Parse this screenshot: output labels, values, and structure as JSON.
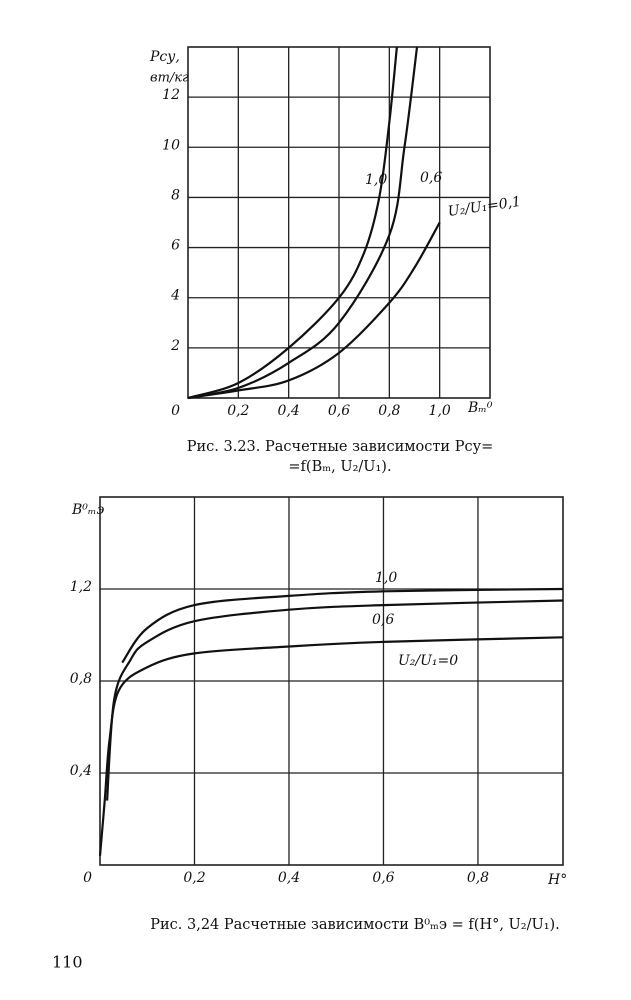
{
  "chart_data": [
    {
      "type": "line",
      "y_label": "Pсу,",
      "y_unit": "вт/кг",
      "x_label": "Bₘ⁰",
      "caption": [
        "Рис. 3.23. Расчетные зависимости Pсу=",
        "=f(Bₘ, U₂/U₁)."
      ],
      "xlim": [
        0,
        1.2
      ],
      "ylim": [
        0,
        14
      ],
      "xticks": [
        0,
        {
          "value": 0.2,
          "label": "0,2"
        },
        {
          "value": 0.4,
          "label": "0,4"
        },
        {
          "value": 0.6,
          "label": "0,6"
        },
        {
          "value": 0.8,
          "label": "0,8"
        },
        {
          "value": 1.0,
          "label": "1,0"
        }
      ],
      "yticks": [
        2,
        4,
        6,
        8,
        10,
        12
      ],
      "grid": true,
      "series": [
        {
          "name": "1,0",
          "color": "#111111",
          "x": [
            0,
            0.2,
            0.4,
            0.6,
            0.7,
            0.76,
            0.8,
            0.83
          ],
          "values": [
            0,
            0.6,
            2.0,
            4.0,
            5.8,
            8,
            11,
            14
          ]
        },
        {
          "name": "0,6",
          "color": "#111111",
          "x": [
            0,
            0.2,
            0.4,
            0.6,
            0.8,
            0.86,
            0.91
          ],
          "values": [
            0,
            0.4,
            1.4,
            3.0,
            6.5,
            10,
            14
          ]
        },
        {
          "name": "U₂/U₁=0,1",
          "color": "#111111",
          "x": [
            0,
            0.2,
            0.4,
            0.6,
            0.8,
            0.9,
            1.0
          ],
          "values": [
            0,
            0.3,
            0.7,
            1.8,
            3.8,
            5.2,
            7.0
          ]
        }
      ]
    },
    {
      "type": "line",
      "y_label": "B⁰ₘэ",
      "x_label": "H°",
      "caption": [
        "Рис. 3,24 Расчетные зависимости B⁰ₘэ = f(H°, U₂/U₁)."
      ],
      "xlim": [
        0,
        0.98
      ],
      "ylim": [
        0,
        1.6
      ],
      "xticks": [
        0,
        {
          "value": 0.2,
          "label": "0,2"
        },
        {
          "value": 0.4,
          "label": "0,4"
        },
        {
          "value": 0.6,
          "label": "0,6"
        },
        {
          "value": 0.8,
          "label": "0,8"
        }
      ],
      "yticks": [
        {
          "value": 0.4,
          "label": "0,4"
        },
        {
          "value": 0.8,
          "label": "0,8"
        },
        {
          "value": 1.2,
          "label": "1,2"
        }
      ],
      "grid": true,
      "series": [
        {
          "name": "1,0",
          "color": "#111111",
          "x": [
            0.047,
            0.1,
            0.2,
            0.4,
            0.6,
            0.98
          ],
          "values": [
            0.88,
            1.03,
            1.13,
            1.17,
            1.19,
            1.2
          ]
        },
        {
          "name": "0,6",
          "color": "#111111",
          "x": [
            0.015,
            0.03,
            0.064,
            0.1,
            0.2,
            0.4,
            0.6,
            0.98
          ],
          "values": [
            0.28,
            0.72,
            0.89,
            0.97,
            1.06,
            1.11,
            1.13,
            1.15
          ]
        },
        {
          "name": "U₂/U₁=0",
          "color": "#111111",
          "x": [
            0,
            0.01,
            0.02,
            0.04,
            0.1,
            0.2,
            0.4,
            0.6,
            0.98
          ],
          "values": [
            0.04,
            0.28,
            0.54,
            0.76,
            0.86,
            0.92,
            0.95,
            0.97,
            0.99
          ]
        }
      ]
    }
  ],
  "page_number": "110"
}
